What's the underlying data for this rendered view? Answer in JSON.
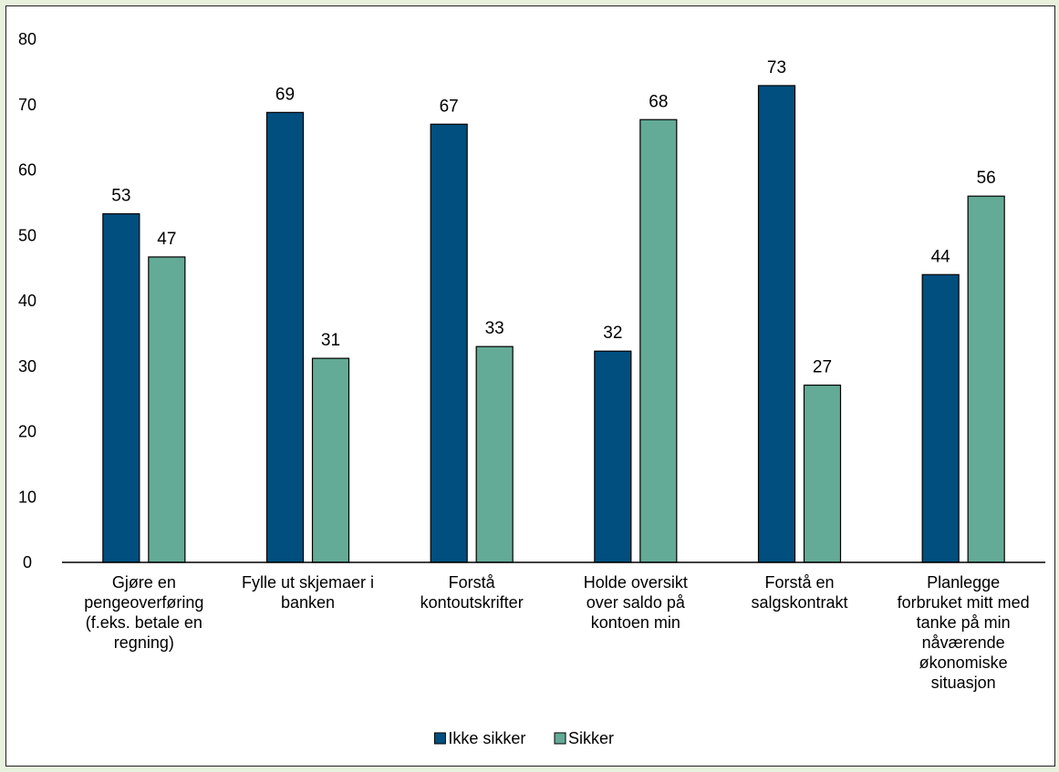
{
  "chart_data": {
    "type": "bar",
    "categories": [
      [
        "Gjøre en",
        "pengeoverføring",
        "(f.eks. betale en",
        "regning)"
      ],
      [
        "Fylle ut skjemaer i",
        "banken"
      ],
      [
        "Forstå",
        "kontoutskrifter"
      ],
      [
        "Holde oversikt",
        "over saldo på",
        "kontoen min"
      ],
      [
        "Forstå en",
        "salgskontrakt"
      ],
      [
        "Planlegge",
        "forbruket mitt med",
        "tanke på min",
        "nåværende",
        "økonomiske",
        "situasjon"
      ]
    ],
    "series": [
      {
        "name": "Ikke sikker",
        "color": "#004f7f",
        "values": [
          53.3,
          68.8,
          67.0,
          32.3,
          72.9,
          44.0
        ]
      },
      {
        "name": "Sikker",
        "color": "#63ab96",
        "values": [
          46.7,
          31.2,
          33.0,
          67.7,
          27.1,
          56.0
        ]
      }
    ],
    "data_labels": [
      [
        "53",
        "69",
        "67",
        "32",
        "73",
        "44"
      ],
      [
        "47",
        "31",
        "33",
        "68",
        "27",
        "56"
      ]
    ],
    "ylim": [
      0,
      80
    ],
    "yticks": [
      "0",
      "10",
      "20",
      "30",
      "40",
      "50",
      "60",
      "70",
      "80"
    ],
    "grid": false,
    "legend_position": "bottom"
  }
}
